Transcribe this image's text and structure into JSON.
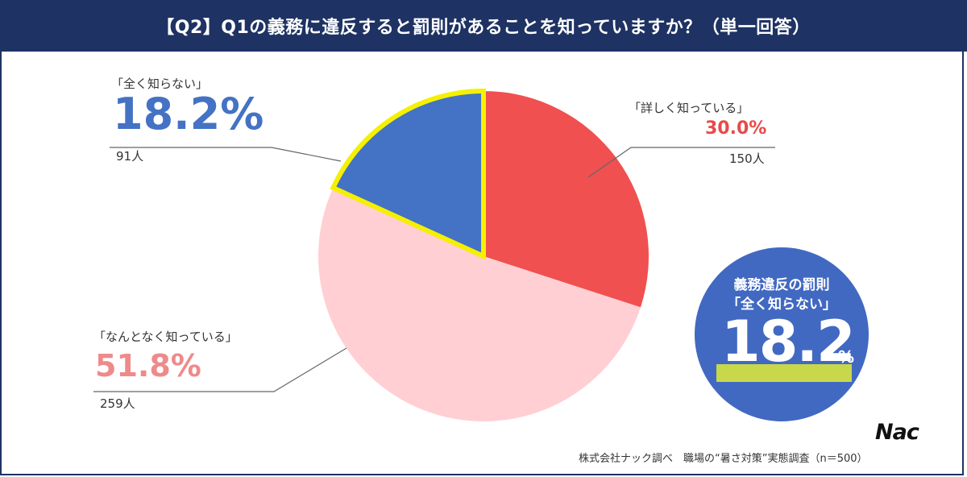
{
  "header": {
    "title": "【Q2】Q1の義務に違反すると罰則があることを知っていますか？（単一回答）"
  },
  "chart_data": {
    "type": "pie",
    "title": "【Q2】Q1の義務に違反すると罰則があることを知っていますか？（単一回答）",
    "slices": [
      {
        "label": "「詳しく知っている」",
        "value": 30.0,
        "display": "30.0%",
        "count": "150人",
        "color": "#f05050",
        "pct_color": "#e84a4a"
      },
      {
        "label": "「なんとなく知っている」",
        "value": 51.8,
        "display": "51.8%",
        "count": "259人",
        "color": "#ffcfd3",
        "pct_color": "#ef8a8a"
      },
      {
        "label": "「全く知らない」",
        "value": 18.2,
        "display": "18.2%",
        "count": "91人",
        "color": "#4472c4",
        "pct_color": "#4472c4",
        "highlight": "#f4f000"
      }
    ]
  },
  "callout": {
    "line1": "義務違反の罰則",
    "line2": "「全く知らない」",
    "value": "18.2",
    "unit": "%",
    "bg_color": "#4169c2",
    "highlight_color": "#c8d84a"
  },
  "footer": {
    "logo": "Nac",
    "source": "株式会社ナック調べ　職場の“暑さ対策”実態調査（n＝500）"
  }
}
